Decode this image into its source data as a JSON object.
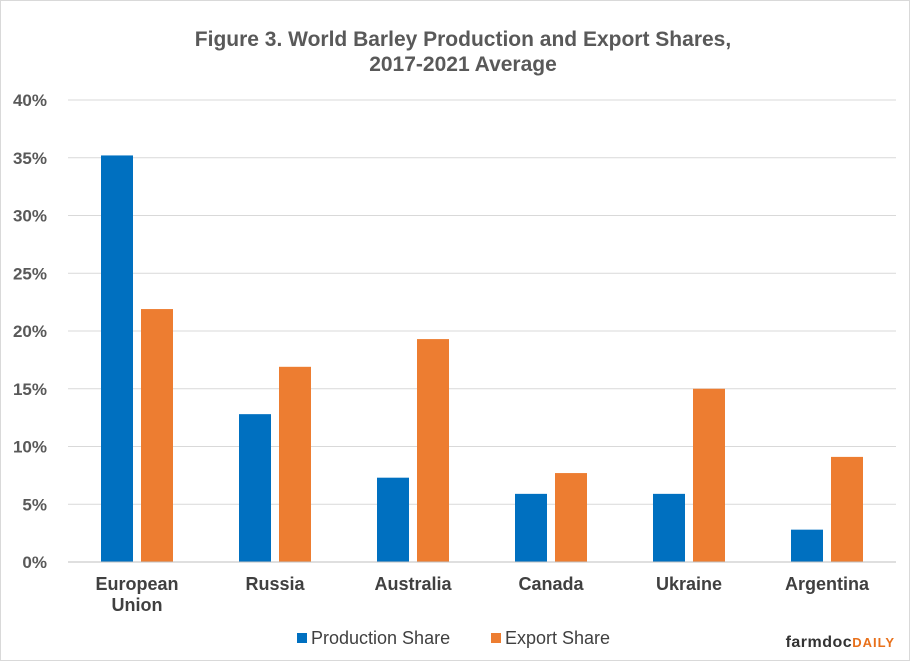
{
  "chart_data": {
    "type": "bar",
    "title": "Figure  3. World Barley  Production  and  Export Shares,",
    "subtitle": "2017-2021  Average",
    "categories": [
      [
        "European",
        "Union"
      ],
      [
        "Russia"
      ],
      [
        "Australia"
      ],
      [
        "Canada"
      ],
      [
        "Ukraine"
      ],
      [
        "Argentina"
      ]
    ],
    "series": [
      {
        "name": "Production Share",
        "color": "#0070c0",
        "values": [
          35.2,
          12.8,
          7.3,
          5.9,
          5.9,
          2.8
        ]
      },
      {
        "name": "Export Share",
        "color": "#ed7d31",
        "values": [
          21.9,
          16.9,
          19.3,
          7.7,
          15.0,
          9.1
        ]
      }
    ],
    "ylim": [
      0,
      40
    ],
    "yticks": [
      "0%",
      "5%",
      "10%",
      "15%",
      "20%",
      "25%",
      "30%",
      "35%",
      "40%"
    ],
    "grid": true,
    "legend": "bottom-center"
  },
  "logo": {
    "main": "farmdoc",
    "accent": "DAILY"
  }
}
